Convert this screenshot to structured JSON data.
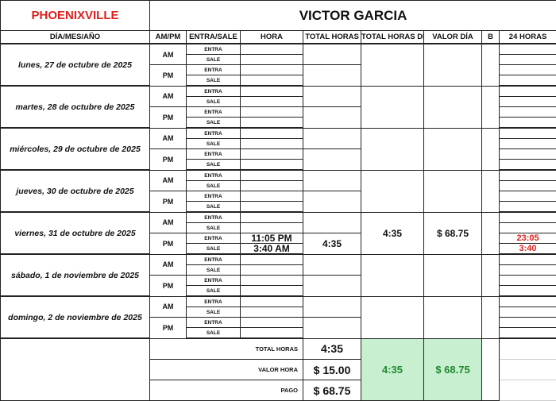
{
  "header": {
    "location": "PHOENIXVILLE",
    "employee": "VICTOR GARCIA"
  },
  "columns": [
    "DÍA/MES/AÑO",
    "AM/PM",
    "ENTRA/SALE",
    "HORA",
    "TOTAL HORAS",
    "TOTAL HORAS DÍA",
    "VALOR DÍA",
    "B",
    "24 HORAS"
  ],
  "labels": {
    "am": "AM",
    "pm": "PM",
    "entra": "ENTRA",
    "sale": "SALE"
  },
  "days": [
    {
      "date": "lunes, 27 de octubre de 2025"
    },
    {
      "date": "martes, 28 de octubre de 2025"
    },
    {
      "date": "miércoles, 29 de octubre de 2025"
    },
    {
      "date": "jueves, 30 de octubre de 2025"
    },
    {
      "date": "viernes, 31 de octubre de 2025",
      "pm_entra": "11:05 PM",
      "pm_sale": "3:40 AM",
      "pm_total": "4:35",
      "total_dia": "4:35",
      "valor_dia": "$ 68.75",
      "pm_entra_24": "23:05",
      "pm_sale_24": "3:40"
    },
    {
      "date": "sábado, 1 de noviembre de 2025"
    },
    {
      "date": "domingo, 2 de noviembre de 2025"
    }
  ],
  "summary": {
    "total_horas_label": "TOTAL HORAS",
    "total_horas": "4:35",
    "valor_hora_label": "VALOR HORA",
    "valor_hora": "$ 15.00",
    "pago_label": "PAGO",
    "pago": "$ 68.75",
    "total_dia": "4:35",
    "valor_dia": "$ 68.75"
  },
  "colors": {
    "brand": "#e0201c",
    "summary_fill": "#c8efcf",
    "summary_text": "#1f8a2e",
    "time_24h": "#d9241f"
  }
}
